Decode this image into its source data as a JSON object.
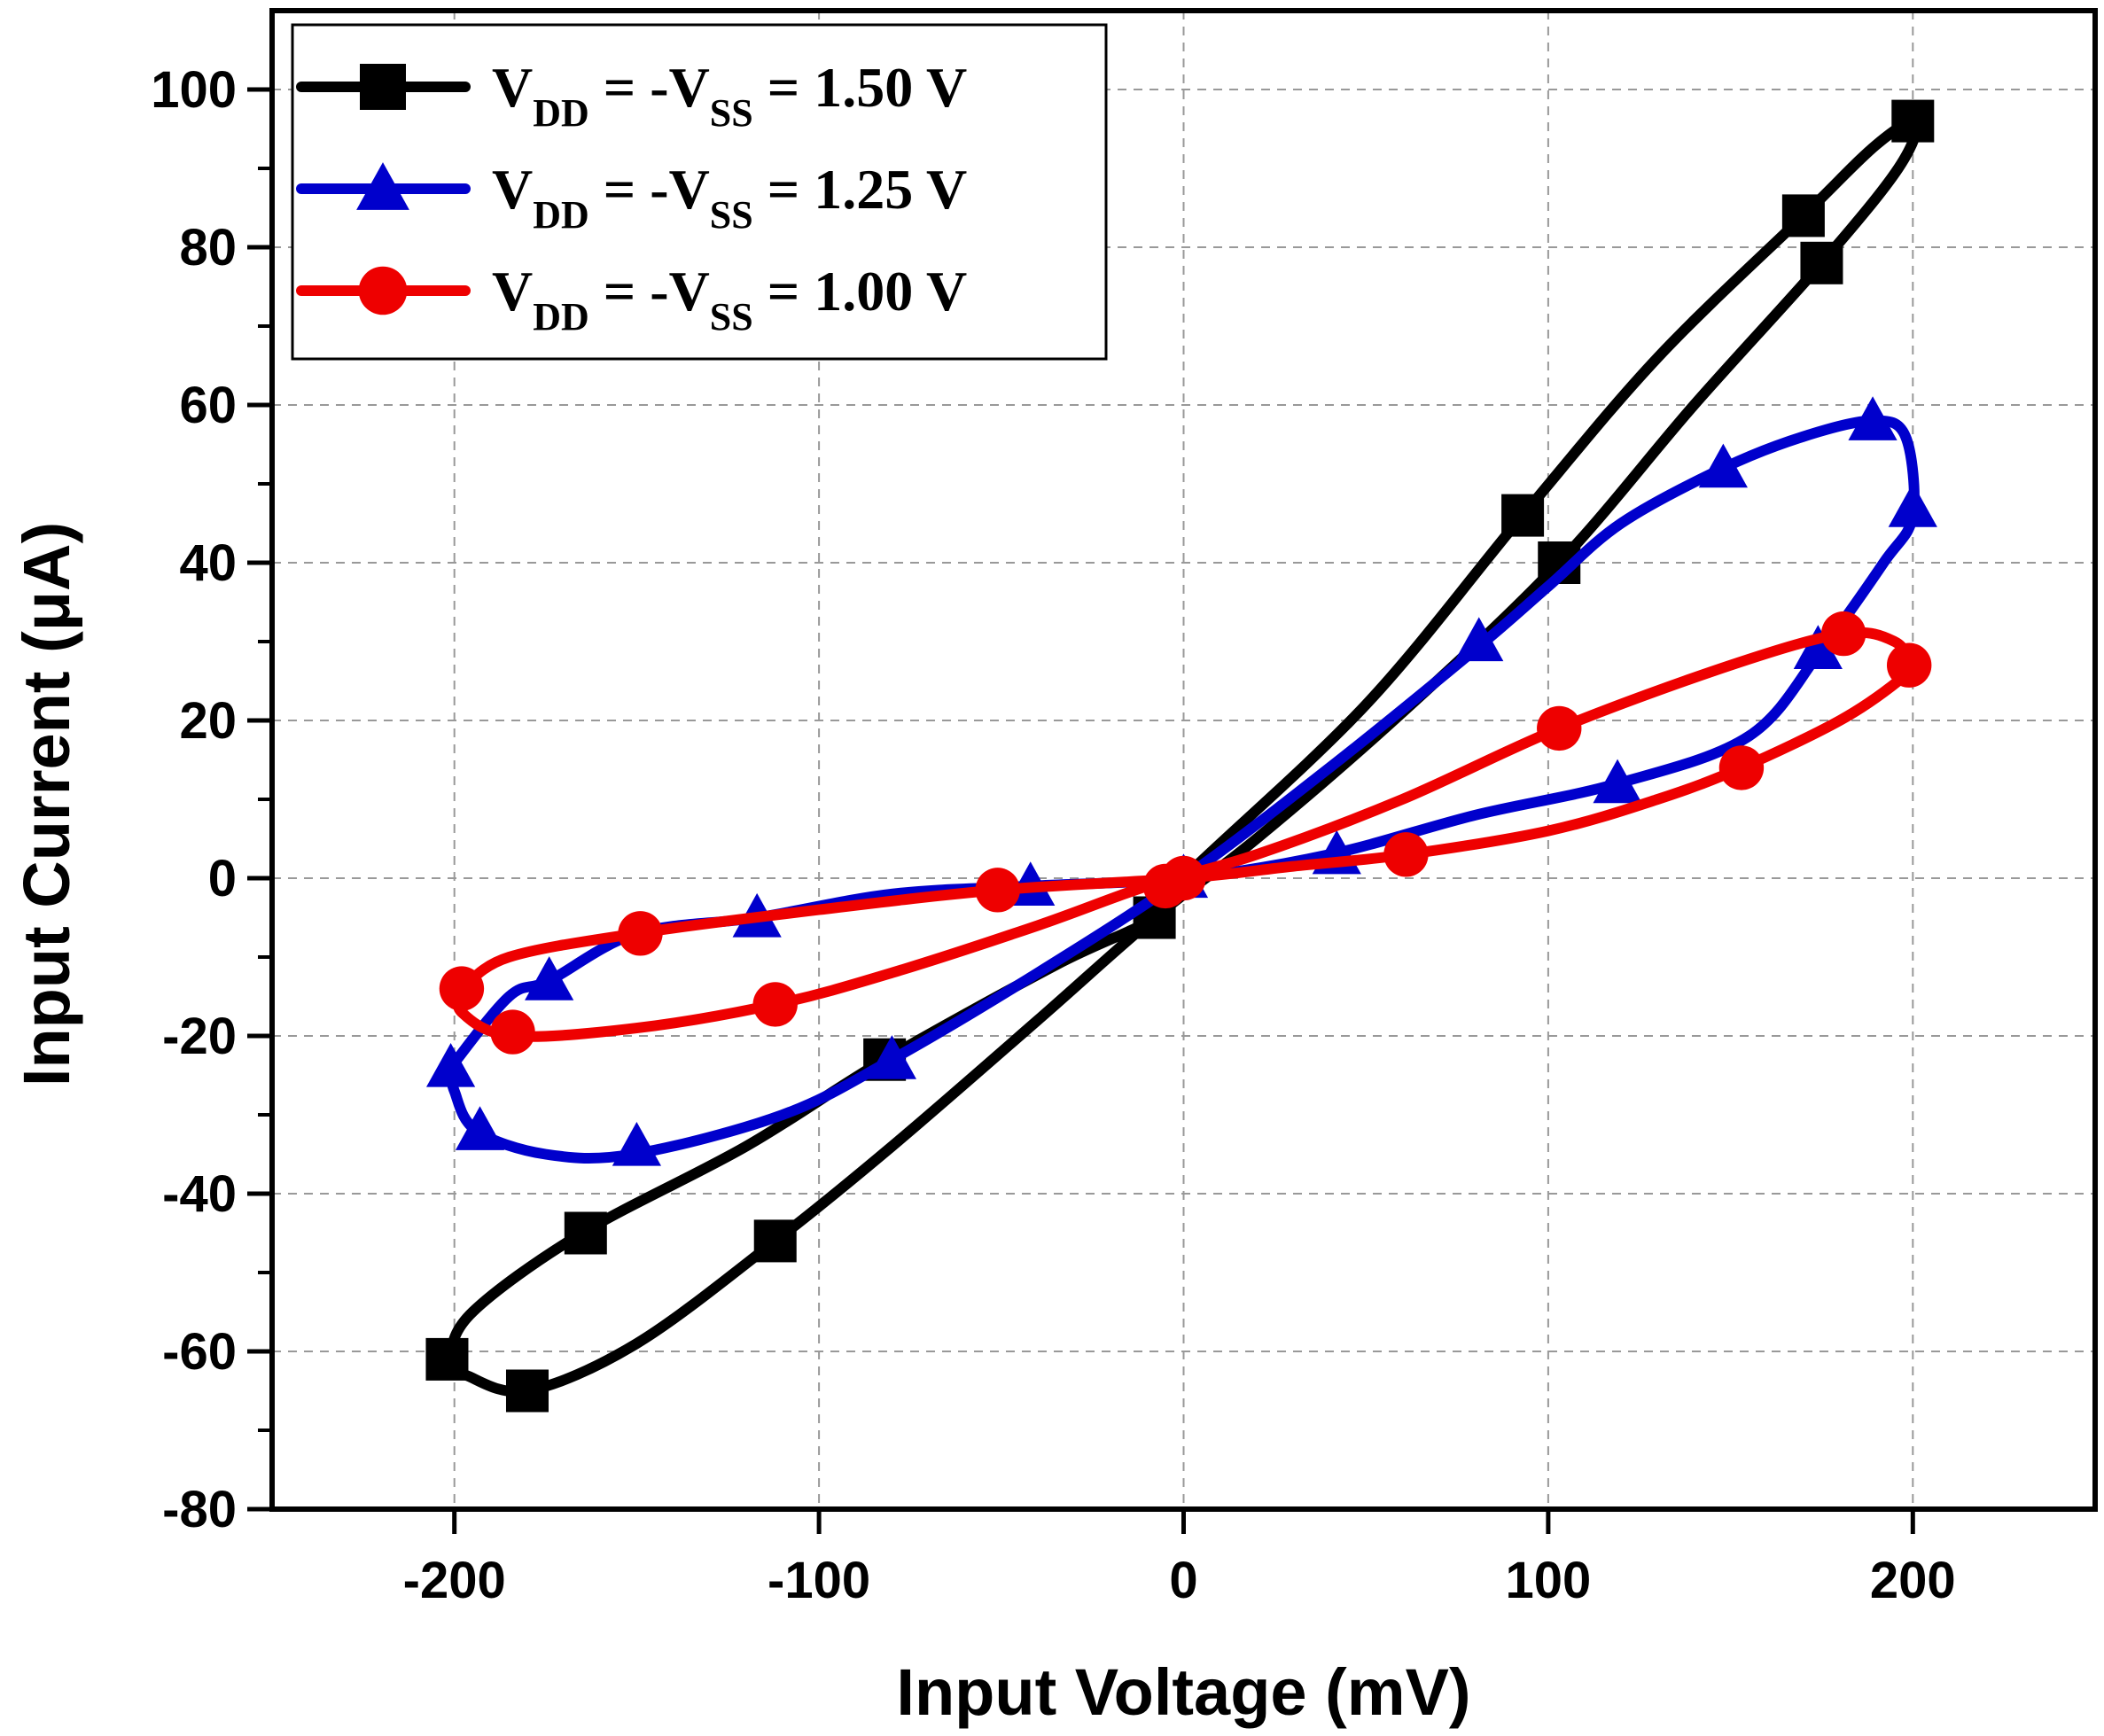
{
  "chart_data": {
    "type": "line",
    "title": "",
    "xlabel": "Input Voltage (mV)",
    "ylabel": "Input Current (μA)",
    "xlim": [
      -250,
      250
    ],
    "ylim": [
      -80,
      110
    ],
    "xticks": [
      -200,
      -100,
      0,
      100,
      200
    ],
    "yticks": [
      -80,
      -60,
      -40,
      -20,
      0,
      20,
      40,
      60,
      80,
      100
    ],
    "grid": true,
    "legend_position": "top-left",
    "series": [
      {
        "name": "VDD = -VSS = 1.50 V",
        "legend": {
          "v1": "V",
          "sub1": "DD",
          "mid": " = -V",
          "sub2": "SS",
          "tail": " = 1.50 V"
        },
        "color": "#000000",
        "marker": "square",
        "curve": [
          [
            -197,
            -63
          ],
          [
            -201,
            -61
          ],
          [
            -195,
            -55
          ],
          [
            -165,
            -45
          ],
          [
            -120,
            -34
          ],
          [
            -82,
            -23
          ],
          [
            -35,
            -11
          ],
          [
            -8,
            -5
          ],
          [
            0,
            0
          ],
          [
            50,
            22
          ],
          [
            93,
            46
          ],
          [
            130,
            66
          ],
          [
            170,
            84
          ],
          [
            190,
            93
          ],
          [
            201,
            96
          ],
          [
            196,
            90
          ],
          [
            175,
            78
          ],
          [
            140,
            60
          ],
          [
            103,
            40
          ],
          [
            60,
            21
          ],
          [
            20,
            5
          ],
          [
            -8,
            -5
          ],
          [
            -40,
            -18
          ],
          [
            -80,
            -34
          ],
          [
            -112,
            -46
          ],
          [
            -150,
            -59
          ],
          [
            -180,
            -65
          ],
          [
            -197,
            -63
          ]
        ],
        "markers": [
          [
            -202,
            -61
          ],
          [
            -164,
            -45
          ],
          [
            -82,
            -23
          ],
          [
            -8,
            -5
          ],
          [
            93,
            46
          ],
          [
            170,
            84
          ],
          [
            200,
            96
          ],
          [
            175,
            78
          ],
          [
            103,
            40
          ],
          [
            -112,
            -46
          ],
          [
            -180,
            -65
          ]
        ]
      },
      {
        "name": "VDD = -VSS = 1.25 V",
        "legend": {
          "v1": "V",
          "sub1": "DD",
          "mid": " = -V",
          "sub2": "SS",
          "tail": " = 1.25 V"
        },
        "color": "#0000CC",
        "marker": "triangle",
        "curve": [
          [
            -201,
            -24
          ],
          [
            -185,
            -15
          ],
          [
            -174,
            -13
          ],
          [
            -150,
            -7
          ],
          [
            -117,
            -5
          ],
          [
            -80,
            -2
          ],
          [
            -42,
            -1
          ],
          [
            0,
            0
          ],
          [
            40,
            3
          ],
          [
            80,
            8
          ],
          [
            119,
            12
          ],
          [
            155,
            18
          ],
          [
            175,
            29
          ],
          [
            192,
            40
          ],
          [
            200,
            46
          ],
          [
            198,
            56
          ],
          [
            189,
            58
          ],
          [
            170,
            56
          ],
          [
            148,
            52
          ],
          [
            120,
            45
          ],
          [
            100,
            37
          ],
          [
            80,
            29
          ],
          [
            40,
            14
          ],
          [
            0,
            0
          ],
          [
            -40,
            -12
          ],
          [
            -80,
            -23
          ],
          [
            -110,
            -30
          ],
          [
            -151,
            -35
          ],
          [
            -175,
            -35
          ],
          [
            -194,
            -32
          ],
          [
            -200,
            -27
          ],
          [
            -201,
            -24
          ]
        ],
        "markers": [
          [
            -201,
            -24
          ],
          [
            -174,
            -13
          ],
          [
            -117,
            -5
          ],
          [
            -42,
            -1
          ],
          [
            0,
            0
          ],
          [
            42,
            3
          ],
          [
            119,
            12
          ],
          [
            174,
            29
          ],
          [
            200,
            47
          ],
          [
            189,
            58
          ],
          [
            148,
            52
          ],
          [
            81,
            30
          ],
          [
            -80,
            -23
          ],
          [
            -150,
            -34
          ],
          [
            -193,
            -32
          ]
        ]
      },
      {
        "name": "VDD = -VSS = 1.00 V",
        "legend": {
          "v1": "V",
          "sub1": "DD",
          "mid": " = -V",
          "sub2": "SS",
          "tail": " = 1.00 V"
        },
        "color": "#EE0000",
        "marker": "circle",
        "curve": [
          [
            -198,
            -14
          ],
          [
            -185,
            -10
          ],
          [
            -150,
            -7
          ],
          [
            -100,
            -4
          ],
          [
            -51,
            -1.5
          ],
          [
            0,
            0
          ],
          [
            30,
            1.5
          ],
          [
            61,
            3
          ],
          [
            100,
            6
          ],
          [
            130,
            10
          ],
          [
            153,
            14
          ],
          [
            180,
            20
          ],
          [
            196,
            25
          ],
          [
            199,
            27
          ],
          [
            195,
            30
          ],
          [
            181,
            31
          ],
          [
            150,
            27
          ],
          [
            103,
            19
          ],
          [
            60,
            10
          ],
          [
            20,
            3
          ],
          [
            -10,
            -1
          ],
          [
            -40,
            -6
          ],
          [
            -80,
            -12
          ],
          [
            -112,
            -16
          ],
          [
            -150,
            -19
          ],
          [
            -184,
            -20
          ],
          [
            -198,
            -17
          ],
          [
            -198,
            -14
          ]
        ],
        "markers": [
          [
            -198,
            -14
          ],
          [
            -149,
            -7
          ],
          [
            -51,
            -1.5
          ],
          [
            -5,
            -1
          ],
          [
            0,
            0
          ],
          [
            61,
            3
          ],
          [
            153,
            14
          ],
          [
            199,
            27
          ],
          [
            181,
            31
          ],
          [
            103,
            19
          ],
          [
            -112,
            -16
          ],
          [
            -184,
            -19.5
          ]
        ]
      }
    ]
  }
}
